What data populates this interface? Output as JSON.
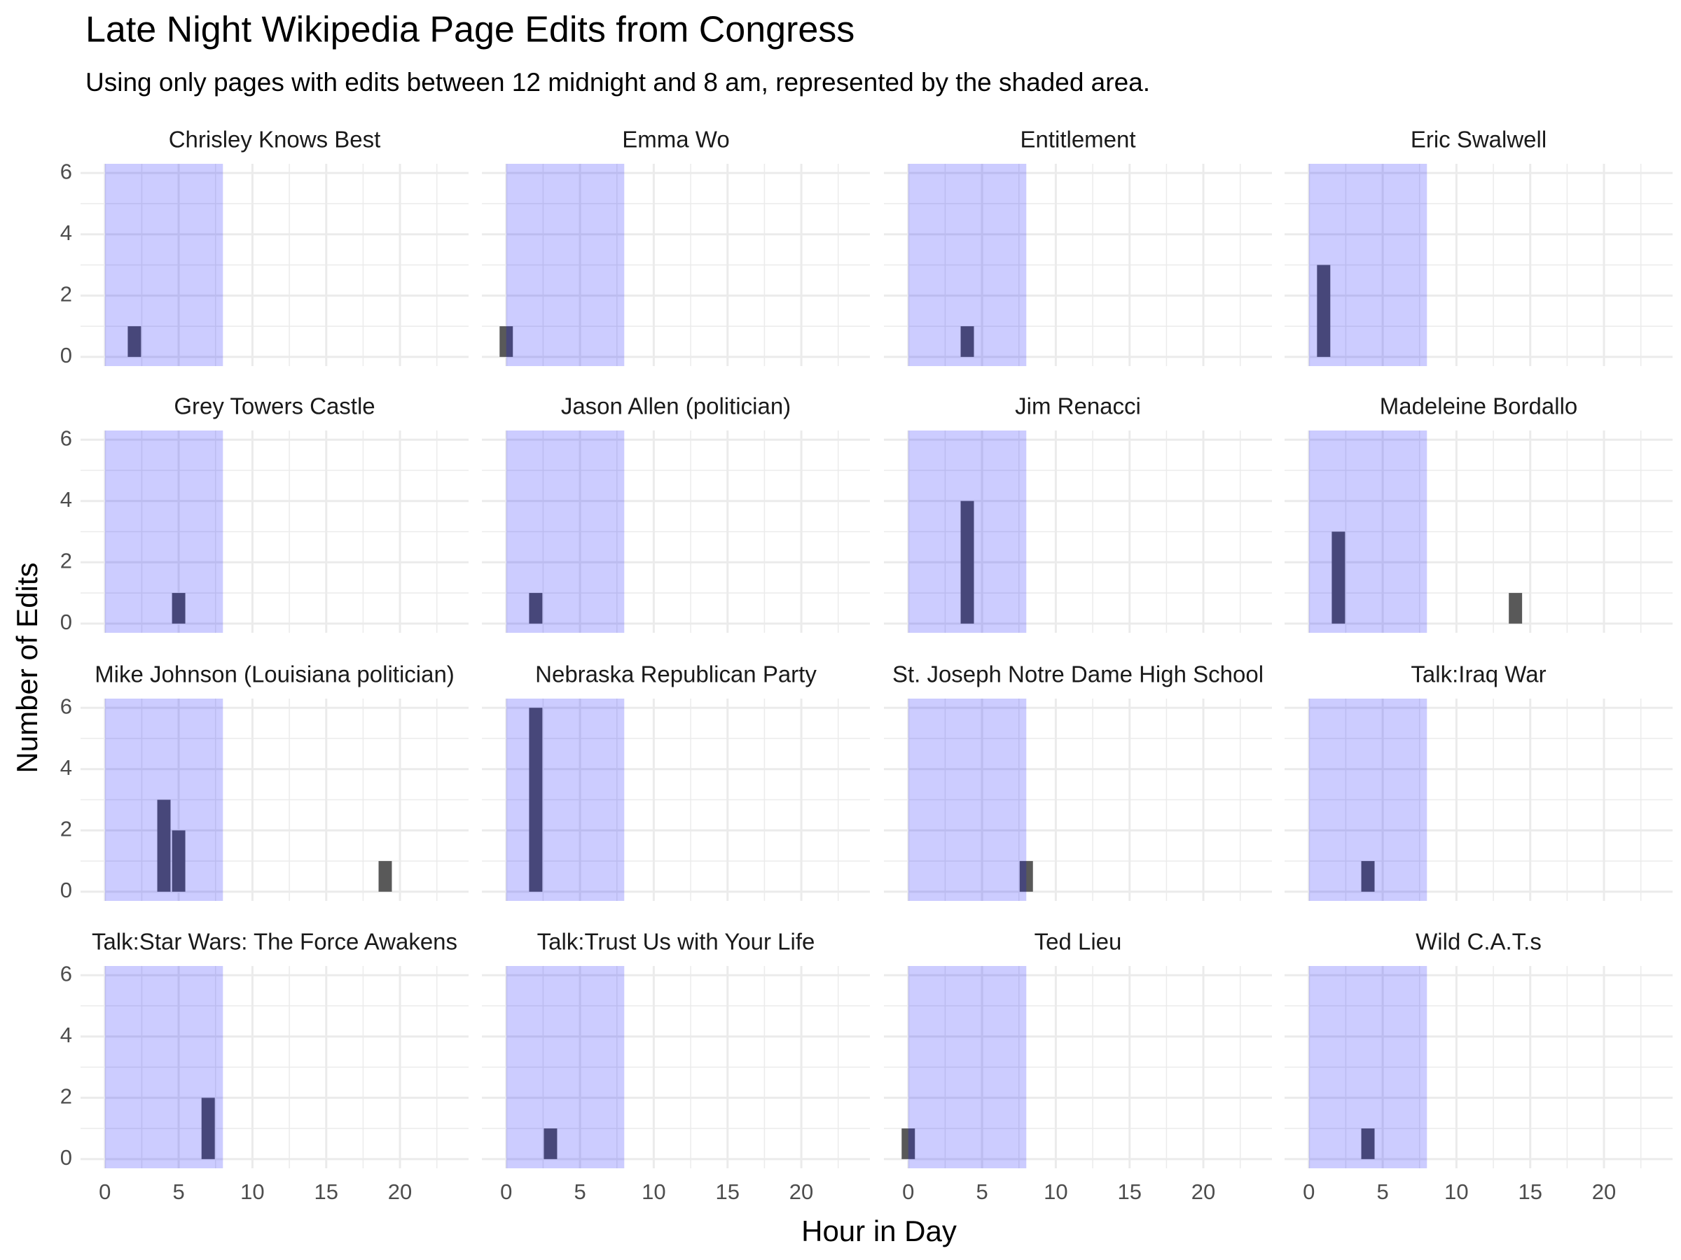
{
  "chart_data": {
    "type": "bar",
    "title": "Late Night Wikipedia Page Edits from Congress",
    "subtitle": "Using only pages with edits between 12 midnight and 8 am, represented by the shaded area.",
    "xlabel": "Hour in Day",
    "ylabel": "Number of Edits",
    "xlim": [
      -1.65,
      24.65
    ],
    "ylim": [
      -0.3,
      6.3
    ],
    "xticks": [
      0,
      5,
      10,
      15,
      20
    ],
    "yticks": [
      0,
      2,
      4,
      6
    ],
    "grid": true,
    "color": "#595959",
    "shade": [
      0,
      8
    ],
    "shade_color": "#0000ff",
    "facets": [
      {
        "title": "Chrisley Knows Best",
        "x": [
          2
        ],
        "values": [
          1
        ]
      },
      {
        "title": "Emma Wo",
        "x": [
          0
        ],
        "values": [
          1
        ]
      },
      {
        "title": "Entitlement",
        "x": [
          4
        ],
        "values": [
          1
        ]
      },
      {
        "title": "Eric Swalwell",
        "x": [
          1
        ],
        "values": [
          3
        ]
      },
      {
        "title": "Grey Towers Castle",
        "x": [
          5
        ],
        "values": [
          1
        ]
      },
      {
        "title": "Jason Allen (politician)",
        "x": [
          2
        ],
        "values": [
          1
        ]
      },
      {
        "title": "Jim Renacci",
        "x": [
          4
        ],
        "values": [
          4
        ]
      },
      {
        "title": "Madeleine Bordallo",
        "x": [
          2,
          14
        ],
        "values": [
          3,
          1
        ]
      },
      {
        "title": "Mike Johnson (Louisiana politician)",
        "x": [
          4,
          5,
          19
        ],
        "values": [
          3,
          2,
          1
        ]
      },
      {
        "title": "Nebraska Republican Party",
        "x": [
          2
        ],
        "values": [
          6
        ]
      },
      {
        "title": "St. Joseph Notre Dame High School",
        "x": [
          8
        ],
        "values": [
          1
        ]
      },
      {
        "title": "Talk:Iraq War",
        "x": [
          4
        ],
        "values": [
          1
        ]
      },
      {
        "title": "Talk:Star Wars: The Force Awakens",
        "x": [
          7
        ],
        "values": [
          2
        ]
      },
      {
        "title": "Talk:Trust Us with Your Life",
        "x": [
          3
        ],
        "values": [
          1
        ]
      },
      {
        "title": "Ted Lieu",
        "x": [
          0
        ],
        "values": [
          1
        ]
      },
      {
        "title": "Wild C.A.T.s",
        "x": [
          4
        ],
        "values": [
          1
        ]
      }
    ]
  }
}
